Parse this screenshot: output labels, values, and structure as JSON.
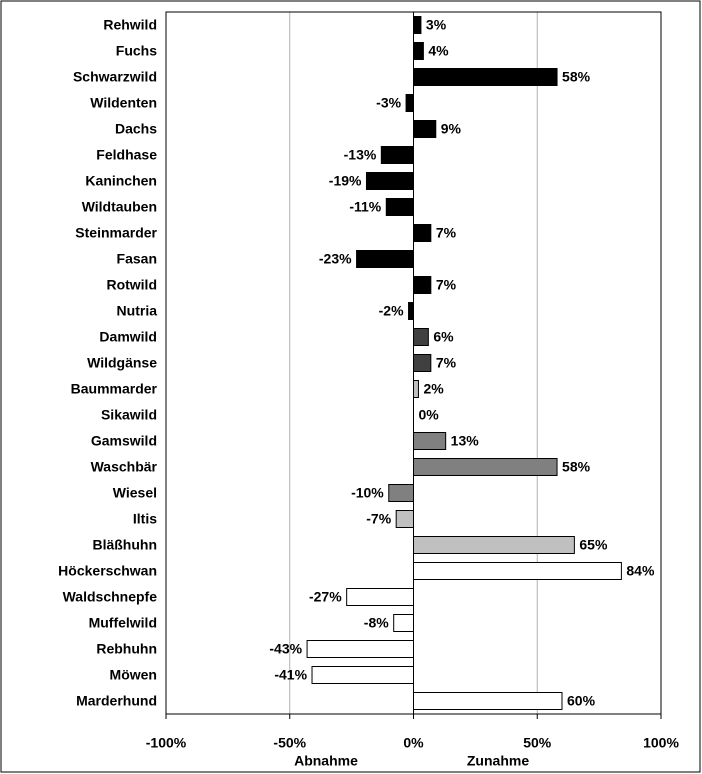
{
  "chart_data": {
    "type": "bar",
    "categories": [
      "Rehwild",
      "Fuchs",
      "Schwarzwild",
      "Wildenten",
      "Dachs",
      "Feldhase",
      "Kaninchen",
      "Wildtauben",
      "Steinmarder",
      "Fasan",
      "Rotwild",
      "Nutria",
      "Damwild",
      "Wildgänse",
      "Baummarder",
      "Sikawild",
      "Gamswild",
      "Waschbär",
      "Wiesel",
      "Iltis",
      "Bläßhuhn",
      "Höckerschwan",
      "Waldschnepfe",
      "Muffelwild",
      "Rebhuhn",
      "Möwen",
      "Marderhund"
    ],
    "values": [
      3,
      4,
      58,
      -3,
      9,
      -13,
      -19,
      -11,
      7,
      -23,
      7,
      -2,
      6,
      7,
      2,
      0,
      13,
      58,
      -10,
      -7,
      65,
      84,
      -27,
      -8,
      -43,
      -41,
      60
    ],
    "value_labels": [
      "3%",
      "4%",
      "58%",
      "-3%",
      "9%",
      "-13%",
      "-19%",
      "-11%",
      "7%",
      "-23%",
      "7%",
      "-2%",
      "6%",
      "7%",
      "2%",
      "0%",
      "13%",
      "58%",
      "-10%",
      "-7%",
      "65%",
      "84%",
      "-27%",
      "-8%",
      "-43%",
      "-41%",
      "60%"
    ],
    "colors": [
      "#000000",
      "#000000",
      "#000000",
      "#000000",
      "#000000",
      "#000000",
      "#000000",
      "#000000",
      "#000000",
      "#000000",
      "#000000",
      "#000000",
      "#404040",
      "#404040",
      "#c0c0c0",
      "#808080",
      "#808080",
      "#808080",
      "#808080",
      "#c0c0c0",
      "#c0c0c0",
      "#ffffff",
      "#ffffff",
      "#ffffff",
      "#ffffff",
      "#ffffff",
      "#ffffff"
    ],
    "xlim": [
      -100,
      100
    ],
    "xticks": [
      {
        "value": -100,
        "label": "-100%"
      },
      {
        "value": -50,
        "label": "-50%"
      },
      {
        "value": 0,
        "label": "0%"
      },
      {
        "value": 50,
        "label": "50%"
      },
      {
        "value": 100,
        "label": "100%"
      }
    ],
    "annotations": [
      "Abnahme",
      "Zunahme"
    ],
    "grid": true
  }
}
